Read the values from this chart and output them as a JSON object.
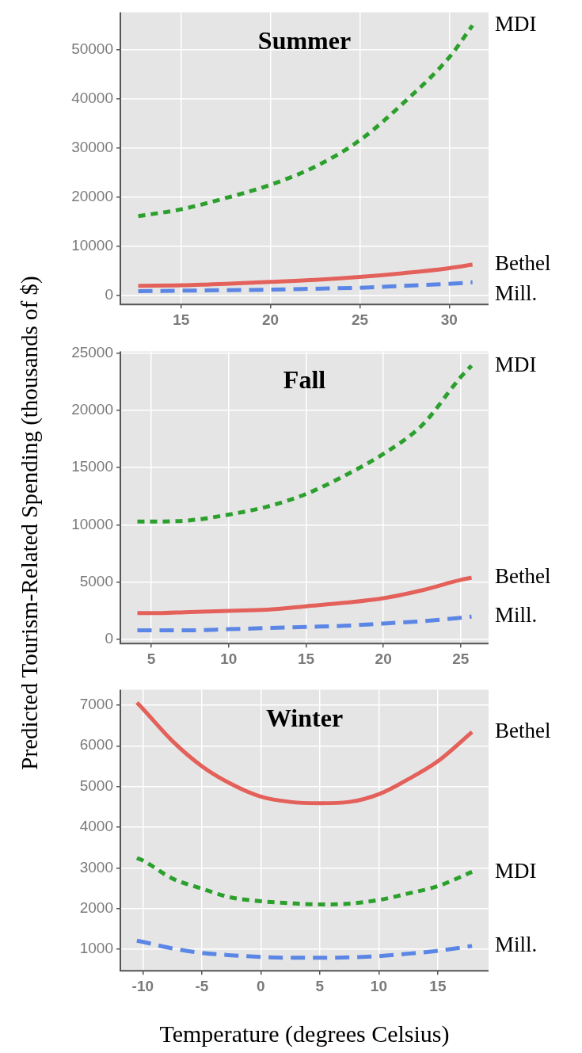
{
  "chart_data": [
    {
      "type": "line",
      "title": "Summer",
      "grid": true,
      "xlim": [
        11.6,
        32.2
      ],
      "xticks": [
        15,
        20,
        25,
        30
      ],
      "ylim": [
        -1900,
        57700
      ],
      "yticks": [
        0,
        10000,
        20000,
        30000,
        40000,
        50000
      ],
      "x": [
        12.6,
        15,
        17.5,
        20,
        22.5,
        25,
        27.5,
        30,
        31.3
      ],
      "series": [
        {
          "name": "MDI",
          "color": "#2ca02c",
          "line_style": "dotted",
          "values": [
            16100,
            17500,
            19800,
            22500,
            26200,
            31600,
            39400,
            48500,
            55000
          ]
        },
        {
          "name": "Bethel",
          "color": "#e4605a",
          "line_style": "solid",
          "values": [
            1900,
            2000,
            2300,
            2700,
            3100,
            3700,
            4500,
            5500,
            6200
          ]
        },
        {
          "name": "Mill.",
          "color": "#5b86e5",
          "line_style": "dashed",
          "values": [
            800,
            900,
            1000,
            1100,
            1300,
            1500,
            1900,
            2300,
            2600
          ]
        }
      ]
    },
    {
      "type": "line",
      "title": "Fall",
      "grid": true,
      "ylabel": "Predicted Tourism-Related Spending (thousands of $)",
      "xlim": [
        3,
        26.8
      ],
      "xticks": [
        5,
        10,
        15,
        20,
        25
      ],
      "ylim": [
        -350,
        25150
      ],
      "yticks": [
        0,
        5000,
        10000,
        15000,
        20000,
        25000
      ],
      "x": [
        4.1,
        5,
        7.5,
        10,
        12.5,
        15,
        17.5,
        20,
        22.5,
        25,
        25.7
      ],
      "series": [
        {
          "name": "MDI",
          "color": "#2ca02c",
          "line_style": "dotted",
          "values": [
            10300,
            10300,
            10400,
            10900,
            11600,
            12700,
            14300,
            16200,
            18700,
            22900,
            23900
          ]
        },
        {
          "name": "Bethel",
          "color": "#e4605a",
          "line_style": "solid",
          "values": [
            2300,
            2300,
            2400,
            2500,
            2600,
            2900,
            3200,
            3600,
            4300,
            5200,
            5400
          ]
        },
        {
          "name": "Mill.",
          "color": "#5b86e5",
          "line_style": "dashed",
          "values": [
            800,
            800,
            800,
            900,
            1000,
            1100,
            1200,
            1400,
            1600,
            1900,
            2000
          ]
        }
      ]
    },
    {
      "type": "line",
      "title": "Winter",
      "grid": true,
      "xlabel": "Temperature (degrees Celsius)",
      "xlim": [
        -11.9,
        19.3
      ],
      "xticks": [
        -10,
        -5,
        0,
        5,
        10,
        15
      ],
      "ylim": [
        470,
        7380
      ],
      "yticks": [
        1000,
        2000,
        3000,
        4000,
        5000,
        6000,
        7000
      ],
      "x": [
        -10.5,
        -10,
        -7.5,
        -5,
        -2.5,
        0,
        2.5,
        5,
        7.5,
        10,
        12.5,
        15,
        17.9
      ],
      "series": [
        {
          "name": "Bethel",
          "color": "#e4605a",
          "line_style": "solid",
          "values": [
            7060,
            6910,
            6120,
            5500,
            5060,
            4750,
            4620,
            4590,
            4620,
            4810,
            5180,
            5620,
            6340
          ]
        },
        {
          "name": "MDI",
          "color": "#2ca02c",
          "line_style": "dotted",
          "values": [
            3240,
            3180,
            2740,
            2490,
            2270,
            2180,
            2130,
            2100,
            2120,
            2210,
            2370,
            2550,
            2900
          ]
        },
        {
          "name": "Mill.",
          "color": "#5b86e5",
          "line_style": "dashed",
          "values": [
            1210,
            1180,
            1020,
            910,
            850,
            810,
            790,
            790,
            800,
            830,
            890,
            960,
            1080
          ]
        }
      ]
    }
  ]
}
